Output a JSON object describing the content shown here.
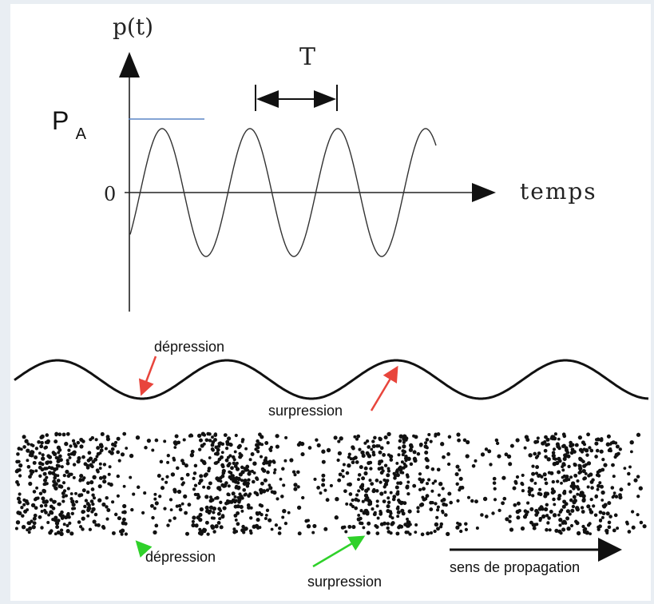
{
  "top_graph": {
    "y_axis_label": "p(t)",
    "x_axis_label": "temps",
    "origin_label": "0",
    "period_label": "T",
    "amplitude_label_main": "P",
    "amplitude_label_sub": "A"
  },
  "wave_profile": {
    "depression_label": "dépression",
    "surpression_label": "surpression"
  },
  "particle_band": {
    "depression_label": "dépression",
    "surpression_label": "surpression",
    "propagation_label": "sens de propagation"
  },
  "colors": {
    "red_arrow": "#e8453c",
    "green_arrow": "#2fd12a",
    "amplitude_line": "#5b86c5"
  }
}
